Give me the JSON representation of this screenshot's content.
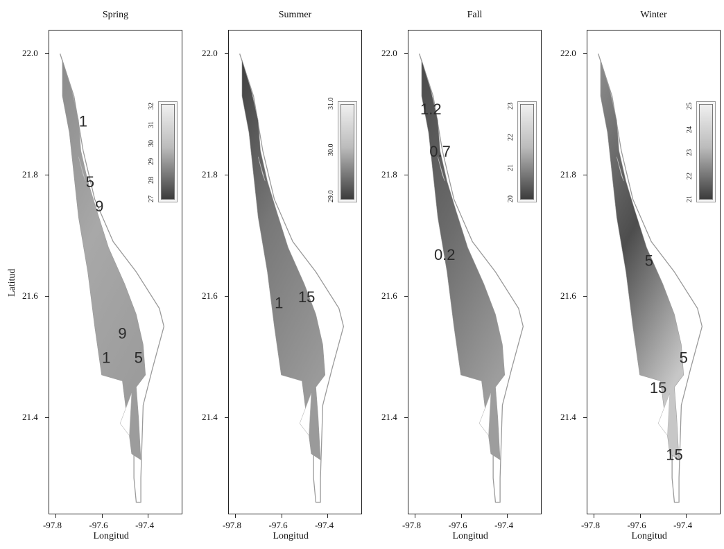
{
  "figure": {
    "y_axis_label": "Latitud",
    "x_axis_label": "Longitud",
    "colors": {
      "frame": "#222222",
      "outline": "#9a9a9a",
      "contour_text": "#2a2a2a"
    }
  },
  "chart_data": [
    {
      "type": "heatmap",
      "title": "Spring",
      "xlabel": "Longitud",
      "ylabel": "Latitud",
      "xlim": [
        -97.83,
        -97.25
      ],
      "ylim": [
        21.24,
        22.02
      ],
      "x_ticks": [
        "-97.8",
        "-97.6",
        "-97.4"
      ],
      "y_ticks": [
        "21.4",
        "21.6",
        "21.8",
        "22.0"
      ],
      "legend_ticks": [
        "27",
        "28",
        "29",
        "30",
        "31",
        "32"
      ],
      "shade": "light",
      "contour_labels": [
        {
          "text": "1",
          "lon": -97.68,
          "lat": 21.88
        },
        {
          "text": "5",
          "lon": -97.65,
          "lat": 21.78
        },
        {
          "text": "9",
          "lon": -97.61,
          "lat": 21.74
        },
        {
          "text": "9",
          "lon": -97.51,
          "lat": 21.53
        },
        {
          "text": "1",
          "lon": -97.58,
          "lat": 21.49
        },
        {
          "text": "5",
          "lon": -97.44,
          "lat": 21.49
        }
      ]
    },
    {
      "type": "heatmap",
      "title": "Summer",
      "xlabel": "Longitud",
      "ylabel": "",
      "xlim": [
        -97.83,
        -97.25
      ],
      "ylim": [
        21.24,
        22.02
      ],
      "x_ticks": [
        "-97.8",
        "-97.6",
        "-97.4"
      ],
      "y_ticks": [
        "21.4",
        "21.6",
        "21.8",
        "22.0"
      ],
      "legend_ticks": [
        "29.0",
        "30.0",
        "31.0"
      ],
      "shade": "mid",
      "contour_labels": [
        {
          "text": "1",
          "lon": -97.61,
          "lat": 21.58
        },
        {
          "text": "15",
          "lon": -97.49,
          "lat": 21.59
        }
      ]
    },
    {
      "type": "heatmap",
      "title": "Fall",
      "xlabel": "Longitud",
      "ylabel": "",
      "xlim": [
        -97.83,
        -97.25
      ],
      "ylim": [
        21.24,
        22.02
      ],
      "x_ticks": [
        "-97.8",
        "-97.6",
        "-97.4"
      ],
      "y_ticks": [
        "21.4",
        "21.6",
        "21.8",
        "22.0"
      ],
      "legend_ticks": [
        "20",
        "21",
        "22",
        "23"
      ],
      "shade": "dark",
      "contour_labels": [
        {
          "text": "1.2",
          "lon": -97.73,
          "lat": 21.9
        },
        {
          "text": "0.7",
          "lon": -97.69,
          "lat": 21.83
        },
        {
          "text": "0.2",
          "lon": -97.67,
          "lat": 21.66
        }
      ]
    },
    {
      "type": "heatmap",
      "title": "Winter",
      "xlabel": "Longitud",
      "ylabel": "",
      "xlim": [
        -97.83,
        -97.25
      ],
      "ylim": [
        21.24,
        22.02
      ],
      "x_ticks": [
        "-97.8",
        "-97.6",
        "-97.4"
      ],
      "y_ticks": [
        "21.4",
        "21.6",
        "21.8",
        "22.0"
      ],
      "legend_ticks": [
        "21",
        "22",
        "23",
        "24",
        "25"
      ],
      "shade": "winter",
      "contour_labels": [
        {
          "text": "5",
          "lon": -97.56,
          "lat": 21.65
        },
        {
          "text": "5",
          "lon": -97.41,
          "lat": 21.49
        },
        {
          "text": "15",
          "lon": -97.52,
          "lat": 21.44
        },
        {
          "text": "15",
          "lon": -97.45,
          "lat": 21.33
        }
      ]
    }
  ]
}
